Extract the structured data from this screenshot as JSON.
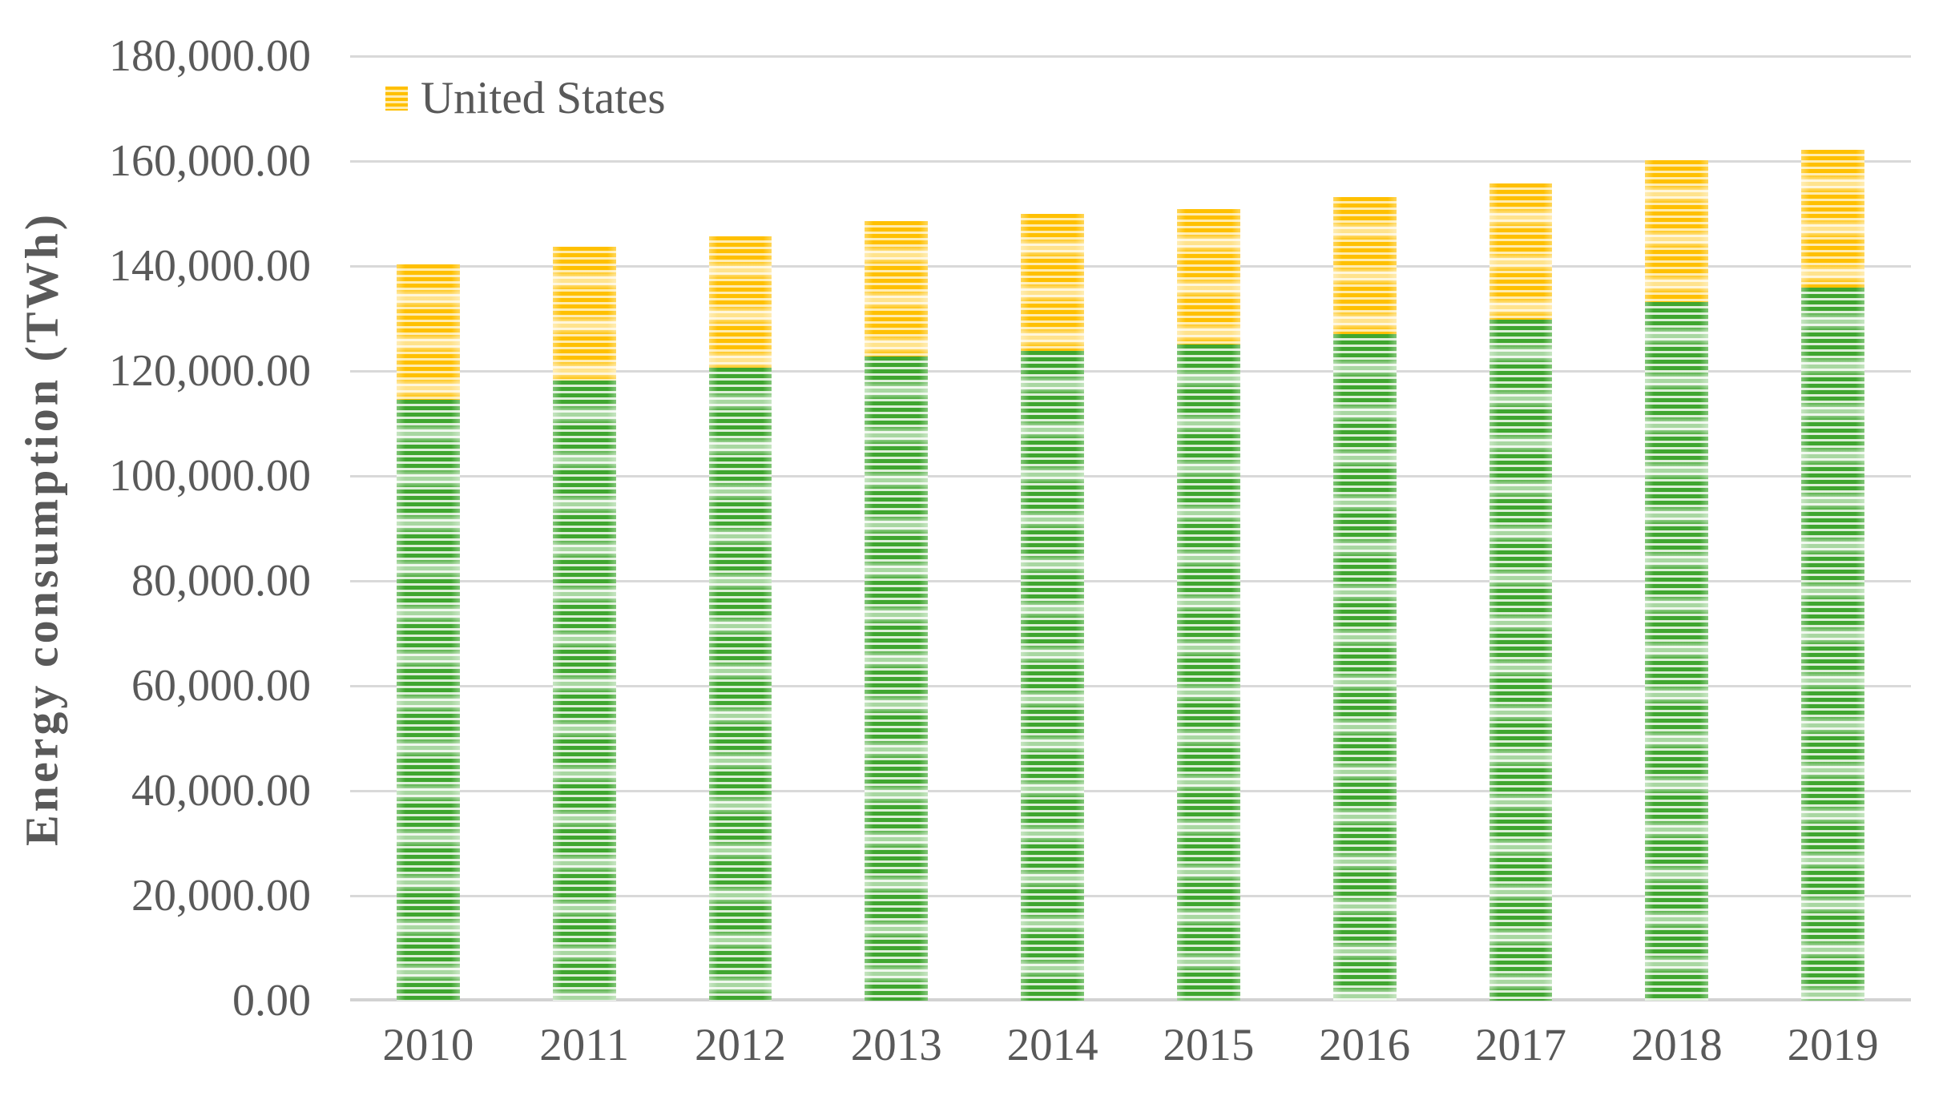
{
  "chart_data": {
    "type": "bar",
    "stacked": true,
    "title": "",
    "xlabel": "",
    "ylabel": "Energy consumption (TWh)",
    "categories": [
      "2010",
      "2011",
      "2012",
      "2013",
      "2014",
      "2015",
      "2016",
      "2017",
      "2018",
      "2019"
    ],
    "series": [
      {
        "name": "",
        "color": "#3FA62F",
        "stripe_color": "#DCEFD7",
        "values": [
          114500,
          118100,
          120600,
          122700,
          123800,
          125000,
          127000,
          129700,
          133200,
          135900
        ]
      },
      {
        "name": "United States",
        "color": "#FFC000",
        "stripe_color": "#FFECB0",
        "values": [
          25800,
          25600,
          25000,
          25900,
          26100,
          25800,
          26100,
          26100,
          26900,
          26300
        ]
      }
    ],
    "stack_totals": [
      140300,
      143700,
      145600,
      148600,
      149900,
      150800,
      153100,
      155800,
      160100,
      162200
    ],
    "ylim": [
      0,
      180000
    ],
    "ytick_step": 20000,
    "ytick_labels": [
      "0.00",
      "20,000.00",
      "40,000.00",
      "60,000.00",
      "80,000.00",
      "100,000.00",
      "120,000.00",
      "140,000.00",
      "160,000.00",
      "180,000.00"
    ],
    "grid": true,
    "legend": {
      "position": "top-left-inside",
      "entries": [
        {
          "label": "United States",
          "color": "#FFC000"
        }
      ]
    }
  },
  "style_colors": {
    "gridline": "#D9D9D9",
    "axis_text": "#595959",
    "background": "#FFFFFF"
  }
}
